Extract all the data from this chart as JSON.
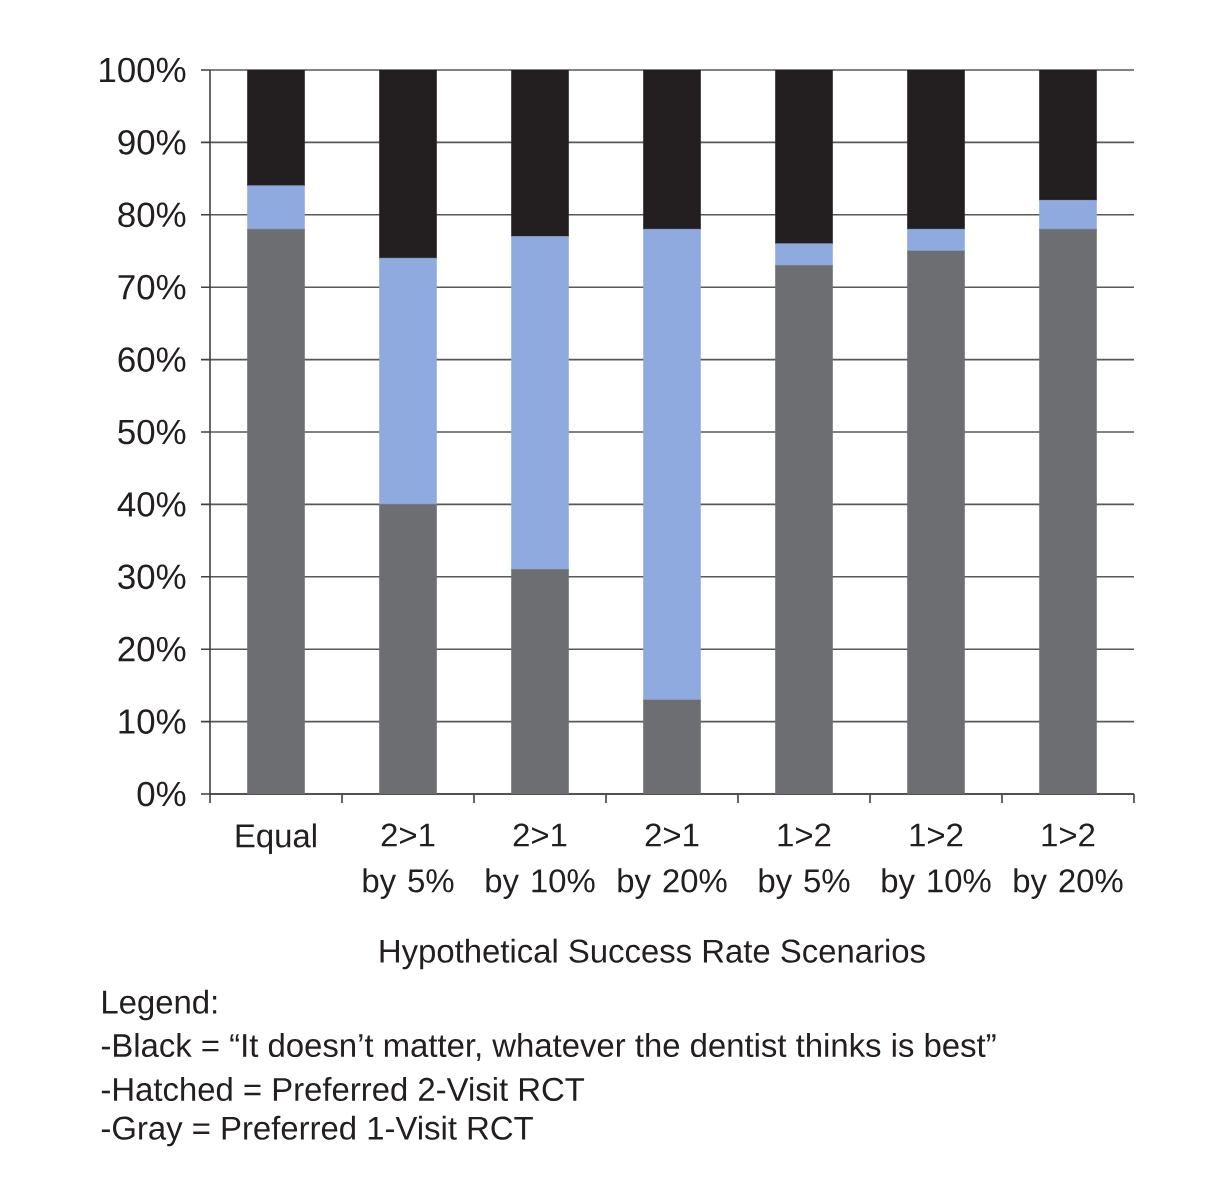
{
  "chart_data": {
    "type": "bar",
    "stacked": true,
    "categories": [
      "Equal",
      "2>1 by 5%",
      "2>1 by 10%",
      "2>1 by 20%",
      "1>2 by 5%",
      "1>2 by 10%",
      "1>2 by 20%"
    ],
    "series": [
      {
        "color": "#6d6e71",
        "values": [
          78,
          40,
          31,
          13,
          73,
          75,
          78
        ]
      },
      {
        "color": "#8eaadf",
        "values": [
          6,
          34,
          46,
          65,
          3,
          3,
          4
        ]
      },
      {
        "color": "#231f20",
        "values": [
          16,
          26,
          23,
          22,
          24,
          22,
          18
        ]
      }
    ],
    "xlabel": "Hypothetical Success Rate Scenarios",
    "ylim": [
      0,
      100
    ],
    "yticks": [
      {
        "value": 0,
        "label": "0%"
      },
      {
        "value": 10,
        "label": "10%"
      },
      {
        "value": 20,
        "label": "20%"
      },
      {
        "value": 30,
        "label": "30%"
      },
      {
        "value": 40,
        "label": "40%"
      },
      {
        "value": 50,
        "label": "50%"
      },
      {
        "value": 60,
        "label": "60%"
      },
      {
        "value": 70,
        "label": "70%"
      },
      {
        "value": 80,
        "label": "80%"
      },
      {
        "value": 90,
        "label": "90%"
      },
      {
        "value": 100,
        "label": "100%"
      }
    ],
    "grid": "y",
    "annotations": [
      "Legend:",
      "-Black = “It doesn’t matter, whatever the dentist thinks is best”",
      "-Hatched = Preferred 2-Visit RCT",
      "-Gray = Preferred 1-Visit RCT"
    ]
  }
}
